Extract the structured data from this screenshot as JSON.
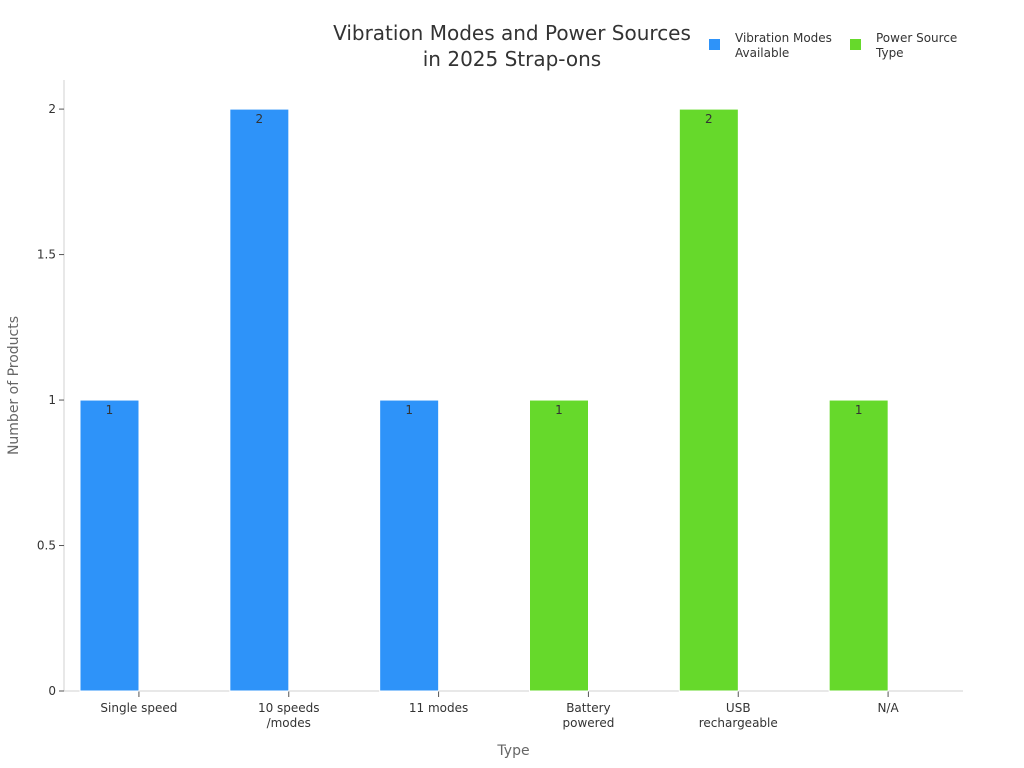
{
  "chart_data": {
    "type": "bar",
    "title": [
      "Vibration Modes and Power Sources",
      "in 2025 Strap-ons"
    ],
    "xlabel": "Type",
    "ylabel": "Number of Products",
    "categories": [
      [
        "Single speed"
      ],
      [
        "10 speeds",
        "/modes"
      ],
      [
        "11 modes"
      ],
      [
        "Battery",
        "powered"
      ],
      [
        "USB",
        "rechargeable"
      ],
      [
        "N/A"
      ]
    ],
    "series": [
      {
        "name": [
          "Vibration Modes",
          "Available"
        ],
        "color": "#2e93f9",
        "values": [
          1,
          2,
          1,
          null,
          null,
          null
        ]
      },
      {
        "name": [
          "Power Source",
          "Type"
        ],
        "color": "#66d92b",
        "values": [
          null,
          null,
          null,
          1,
          2,
          1
        ]
      }
    ],
    "yticks": [
      "0",
      "0.5",
      "1",
      "1.5",
      "2"
    ],
    "ylim": [
      0,
      2.1
    ],
    "grid": false,
    "legend_position": "top-right"
  }
}
